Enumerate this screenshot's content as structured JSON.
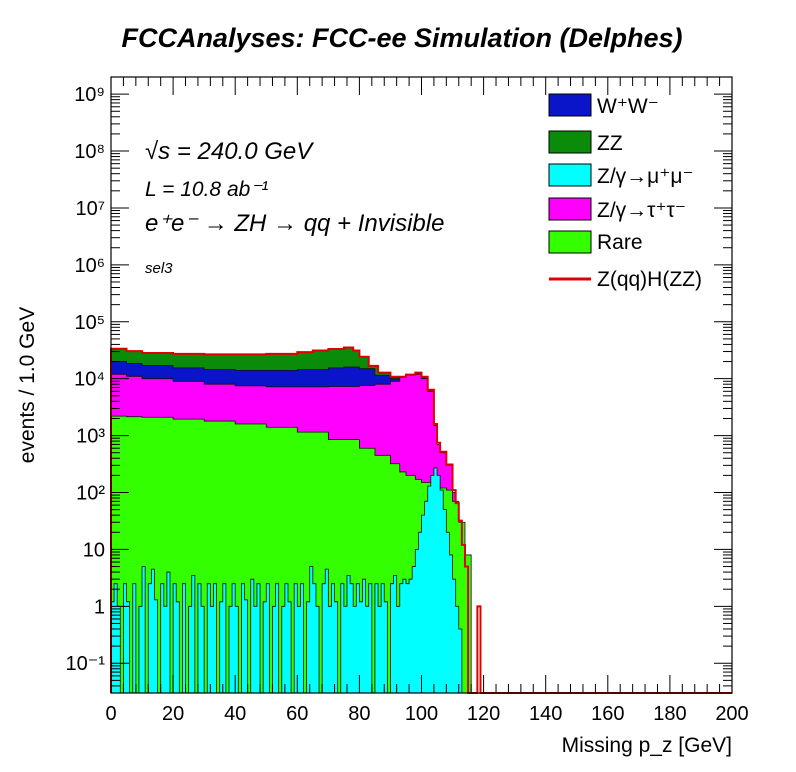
{
  "colors": {
    "WW": "#0a14c8",
    "ZZ": "#0a8c0a",
    "Zmumu": "#00ffff",
    "Ztautau": "#ff00ff",
    "Rare": "#33ff00",
    "signal": "#dd0000"
  },
  "legend_labels": {
    "WW": "W⁺W⁻",
    "ZZ": "ZZ",
    "Zmumu": "Z/γ→μ⁺μ⁻",
    "Ztautau": "Z/γ→τ⁺τ⁻",
    "Rare": "Rare",
    "signal": "Z(qq)H(ZZ)"
  },
  "chart_data": {
    "type": "area",
    "title": "FCCAnalyses: FCC-ee Simulation (Delphes)",
    "xlabel": "Missing p_z [GeV]",
    "ylabel": "events / 1.0 GeV",
    "xlim": [
      0,
      200
    ],
    "ylim": [
      0.03,
      2000000000
    ],
    "yscale": "log",
    "legend_position": "top-right",
    "x_ticks": [
      "0",
      "20",
      "40",
      "60",
      "80",
      "100",
      "120",
      "140",
      "160",
      "180",
      "200"
    ],
    "y_ticks": [
      {
        "value": 0.1,
        "label": "10⁻¹"
      },
      {
        "value": 1,
        "label": "1"
      },
      {
        "value": 10,
        "label": "10"
      },
      {
        "value": 100,
        "label": "10²"
      },
      {
        "value": 1000,
        "label": "10³"
      },
      {
        "value": 10000,
        "label": "10⁴"
      },
      {
        "value": 100000,
        "label": "10⁵"
      },
      {
        "value": 1000000,
        "label": "10⁶"
      },
      {
        "value": 10000000,
        "label": "10⁷"
      },
      {
        "value": 100000000,
        "label": "10⁸"
      },
      {
        "value": 1000000000,
        "label": "10⁹"
      }
    ],
    "annotations": {
      "energy": "√s = 240.0 GeV",
      "lumi": "L = 10.8 ab⁻¹",
      "process": "e⁺e⁻ → ZH → qq + Invisible",
      "selection": "sel3"
    },
    "stack_order": [
      "Rare",
      "Zmumu",
      "Ztautau",
      "WW",
      "ZZ"
    ],
    "series": [
      {
        "name": "Rare",
        "bins": [
          [
            0,
            2200
          ],
          [
            5,
            2150
          ],
          [
            10,
            2100
          ],
          [
            20,
            1950
          ],
          [
            30,
            1800
          ],
          [
            40,
            1600
          ],
          [
            50,
            1400
          ],
          [
            60,
            1150
          ],
          [
            70,
            850
          ],
          [
            80,
            600
          ],
          [
            85,
            450
          ],
          [
            90,
            320
          ],
          [
            93,
            230
          ],
          [
            95,
            200
          ],
          [
            98,
            170
          ],
          [
            100,
            150
          ],
          [
            103,
            130
          ],
          [
            105,
            120
          ],
          [
            108,
            110
          ],
          [
            110,
            70
          ],
          [
            112,
            30
          ],
          [
            114,
            8
          ],
          [
            116,
            0.03
          ],
          [
            200,
            0.03
          ]
        ]
      },
      {
        "name": "Z/γ→μ⁺μ⁻",
        "bins": [
          [
            0,
            1.2
          ],
          [
            1,
            2.5
          ],
          [
            2,
            1.0
          ],
          [
            3,
            0.03
          ],
          [
            4,
            2.5
          ],
          [
            5,
            1.2
          ],
          [
            6,
            0.03
          ],
          [
            7,
            2.5
          ],
          [
            8,
            0.03
          ],
          [
            9,
            1.0
          ],
          [
            10,
            5.0
          ],
          [
            11,
            0.03
          ],
          [
            12,
            2.5
          ],
          [
            13,
            4.5
          ],
          [
            14,
            1.3
          ],
          [
            15,
            0.03
          ],
          [
            16,
            2.5
          ],
          [
            17,
            1.0
          ],
          [
            18,
            4.0
          ],
          [
            19,
            0.03
          ],
          [
            20,
            2.5
          ],
          [
            21,
            1.2
          ],
          [
            22,
            0.03
          ],
          [
            23,
            2.5
          ],
          [
            24,
            0.03
          ],
          [
            25,
            1.0
          ],
          [
            26,
            3.5
          ],
          [
            27,
            0.03
          ],
          [
            28,
            2.5
          ],
          [
            29,
            1.0
          ],
          [
            30,
            0.03
          ],
          [
            31,
            2.5
          ],
          [
            32,
            1.0
          ],
          [
            33,
            2.5
          ],
          [
            34,
            0.03
          ],
          [
            35,
            1.2
          ],
          [
            36,
            2.5
          ],
          [
            37,
            0.03
          ],
          [
            38,
            1.0
          ],
          [
            39,
            2.5
          ],
          [
            40,
            1.0
          ],
          [
            41,
            0.03
          ],
          [
            42,
            2.5
          ],
          [
            43,
            1.3
          ],
          [
            44,
            0.03
          ],
          [
            45,
            3.0
          ],
          [
            46,
            1.0
          ],
          [
            47,
            2.5
          ],
          [
            48,
            0.03
          ],
          [
            49,
            1.2
          ],
          [
            50,
            2.5
          ],
          [
            51,
            0.03
          ],
          [
            52,
            1.0
          ],
          [
            53,
            2.5
          ],
          [
            54,
            0.03
          ],
          [
            55,
            1.0
          ],
          [
            56,
            2.5
          ],
          [
            57,
            1.2
          ],
          [
            58,
            0.03
          ],
          [
            59,
            2.5
          ],
          [
            60,
            1.0
          ],
          [
            61,
            2.5
          ],
          [
            62,
            0.03
          ],
          [
            63,
            1.2
          ],
          [
            64,
            5.0
          ],
          [
            65,
            2.5
          ],
          [
            66,
            1.0
          ],
          [
            67,
            0.03
          ],
          [
            68,
            2.5
          ],
          [
            69,
            4.5
          ],
          [
            70,
            1.0
          ],
          [
            71,
            2.5
          ],
          [
            72,
            1.2
          ],
          [
            73,
            0.03
          ],
          [
            74,
            2.5
          ],
          [
            75,
            1.0
          ],
          [
            76,
            3.5
          ],
          [
            77,
            2.5
          ],
          [
            78,
            1.0
          ],
          [
            79,
            2.5
          ],
          [
            80,
            1.2
          ],
          [
            81,
            3.0
          ],
          [
            82,
            1.0
          ],
          [
            83,
            2.5
          ],
          [
            84,
            0.03
          ],
          [
            85,
            2.5
          ],
          [
            86,
            1.0
          ],
          [
            87,
            2.5
          ],
          [
            88,
            1.2
          ],
          [
            89,
            0.03
          ],
          [
            90,
            2.5
          ],
          [
            91,
            3.5
          ],
          [
            92,
            1.0
          ],
          [
            93,
            2.5
          ],
          [
            94,
            3.0
          ],
          [
            95,
            2.5
          ],
          [
            96,
            3.0
          ],
          [
            97,
            5.0
          ],
          [
            98,
            10
          ],
          [
            99,
            20
          ],
          [
            100,
            40
          ],
          [
            101,
            70
          ],
          [
            102,
            130
          ],
          [
            103,
            200
          ],
          [
            104,
            270
          ],
          [
            105,
            200
          ],
          [
            106,
            110
          ],
          [
            107,
            50
          ],
          [
            108,
            20
          ],
          [
            109,
            8
          ],
          [
            110,
            3
          ],
          [
            111,
            1.0
          ],
          [
            112,
            0.4
          ],
          [
            113,
            0.03
          ],
          [
            200,
            0.03
          ]
        ]
      },
      {
        "name": "Z/γ→τ⁺τ⁻",
        "bins": [
          [
            0,
            12000
          ],
          [
            5,
            11000
          ],
          [
            10,
            10000
          ],
          [
            20,
            9000
          ],
          [
            30,
            8000
          ],
          [
            40,
            7500
          ],
          [
            50,
            7200
          ],
          [
            60,
            7200
          ],
          [
            70,
            7300
          ],
          [
            80,
            7600
          ],
          [
            85,
            8000
          ],
          [
            90,
            9000
          ],
          [
            93,
            10500
          ],
          [
            95,
            11500
          ],
          [
            98,
            12000
          ],
          [
            100,
            10000
          ],
          [
            102,
            6000
          ],
          [
            104,
            1500
          ],
          [
            105,
            700
          ],
          [
            106,
            500
          ],
          [
            108,
            300
          ],
          [
            110,
            100
          ],
          [
            111,
            60
          ],
          [
            112,
            30
          ],
          [
            113,
            10
          ],
          [
            114,
            4
          ],
          [
            115,
            0.03
          ],
          [
            200,
            0.03
          ]
        ]
      },
      {
        "name": "W⁺W⁻",
        "bins": [
          [
            0,
            20000
          ],
          [
            5,
            18500
          ],
          [
            10,
            17000
          ],
          [
            20,
            15500
          ],
          [
            30,
            14500
          ],
          [
            40,
            14000
          ],
          [
            50,
            14000
          ],
          [
            60,
            14500
          ],
          [
            70,
            15500
          ],
          [
            75,
            16000
          ],
          [
            80,
            15000
          ],
          [
            85,
            11500
          ],
          [
            90,
            10000
          ],
          [
            95,
            11500
          ],
          [
            98,
            12500
          ],
          [
            100,
            10500
          ],
          [
            102,
            6200
          ],
          [
            104,
            1500
          ],
          [
            105,
            700
          ],
          [
            106,
            500
          ],
          [
            108,
            300
          ],
          [
            110,
            100
          ],
          [
            111,
            60
          ],
          [
            112,
            30
          ],
          [
            113,
            10
          ],
          [
            114,
            4
          ],
          [
            115,
            0.03
          ],
          [
            200,
            0.03
          ]
        ]
      },
      {
        "name": "ZZ",
        "bins": [
          [
            0,
            33000
          ],
          [
            5,
            30000
          ],
          [
            10,
            28000
          ],
          [
            20,
            27000
          ],
          [
            30,
            26500
          ],
          [
            40,
            26500
          ],
          [
            50,
            27000
          ],
          [
            60,
            29000
          ],
          [
            65,
            31000
          ],
          [
            70,
            33000
          ],
          [
            75,
            35000
          ],
          [
            78,
            31000
          ],
          [
            80,
            24000
          ],
          [
            83,
            16500
          ],
          [
            86,
            12500
          ],
          [
            90,
            10500
          ],
          [
            95,
            11500
          ],
          [
            98,
            12500
          ],
          [
            100,
            10500
          ],
          [
            102,
            6200
          ],
          [
            104,
            1500
          ],
          [
            105,
            700
          ],
          [
            106,
            500
          ],
          [
            108,
            300
          ],
          [
            110,
            100
          ],
          [
            111,
            60
          ],
          [
            112,
            30
          ],
          [
            113,
            10
          ],
          [
            114,
            4
          ],
          [
            115,
            0.03
          ],
          [
            200,
            0.03
          ]
        ]
      },
      {
        "name": "Z(qq)H(ZZ)",
        "bins": [
          [
            0,
            33500
          ],
          [
            5,
            30500
          ],
          [
            10,
            28300
          ],
          [
            20,
            27300
          ],
          [
            30,
            26800
          ],
          [
            40,
            26800
          ],
          [
            50,
            27300
          ],
          [
            60,
            29300
          ],
          [
            65,
            31300
          ],
          [
            70,
            33300
          ],
          [
            75,
            35300
          ],
          [
            78,
            31300
          ],
          [
            80,
            24300
          ],
          [
            83,
            16800
          ],
          [
            86,
            12800
          ],
          [
            90,
            10800
          ],
          [
            95,
            11800
          ],
          [
            98,
            12800
          ],
          [
            100,
            10800
          ],
          [
            102,
            6400
          ],
          [
            104,
            1600
          ],
          [
            105,
            750
          ],
          [
            106,
            520
          ],
          [
            108,
            310
          ],
          [
            110,
            110
          ],
          [
            111,
            65
          ],
          [
            112,
            32
          ],
          [
            113,
            12
          ],
          [
            114,
            5
          ],
          [
            115,
            0.03
          ],
          [
            118,
            1.0
          ],
          [
            119,
            0.03
          ],
          [
            200,
            0.03
          ]
        ]
      }
    ]
  }
}
